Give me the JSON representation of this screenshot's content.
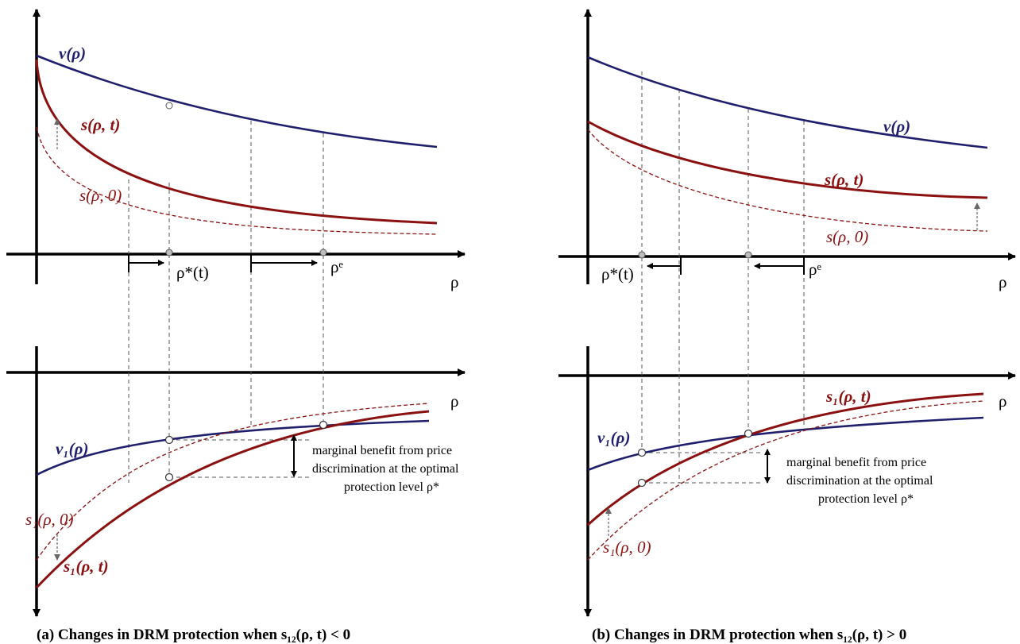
{
  "panel_a": {
    "caption": "(a) Changes in DRM protection when s₁₂(ρ, t) < 0",
    "top": {
      "v_label": "v(ρ)",
      "s_label": "s(ρ, t)",
      "s0_label": "s(ρ, 0)",
      "axis_label": "ρ",
      "rho_star_label": "ρ*(t)",
      "rho_e_label": "ρᵉ"
    },
    "bottom": {
      "v1_label": "v₁(ρ)",
      "s1_0_label": "s₁(ρ, 0)",
      "s1_t_label": "s₁(ρ, t)",
      "axis_label": "ρ",
      "note_line1": "marginal benefit from price",
      "note_line2": "discrimination at the optimal",
      "note_line3": "protection level ρ*"
    }
  },
  "panel_b": {
    "caption": "(b) Changes in DRM protection when s₁₂(ρ, t) > 0",
    "top": {
      "v_label": "v(ρ)",
      "s_label": "s(ρ, t)",
      "s0_label": "s(ρ, 0)",
      "axis_label": "ρ",
      "rho_star_label": "ρ*(t)",
      "rho_e_label": "ρᵉ"
    },
    "bottom": {
      "v1_label": "v₁(ρ)",
      "s1_t_label": "s₁(ρ, t)",
      "s1_0_label": "s₁(ρ, 0)",
      "axis_label": "ρ",
      "note_line1": "marginal benefit from price",
      "note_line2": "discrimination at the optimal",
      "note_line3": "protection level ρ*"
    }
  },
  "colors": {
    "v_curve": "#1f1f6e",
    "s_curve": "#8b1010",
    "guide": "#555555",
    "marker_fill": "#bdbdbd"
  }
}
